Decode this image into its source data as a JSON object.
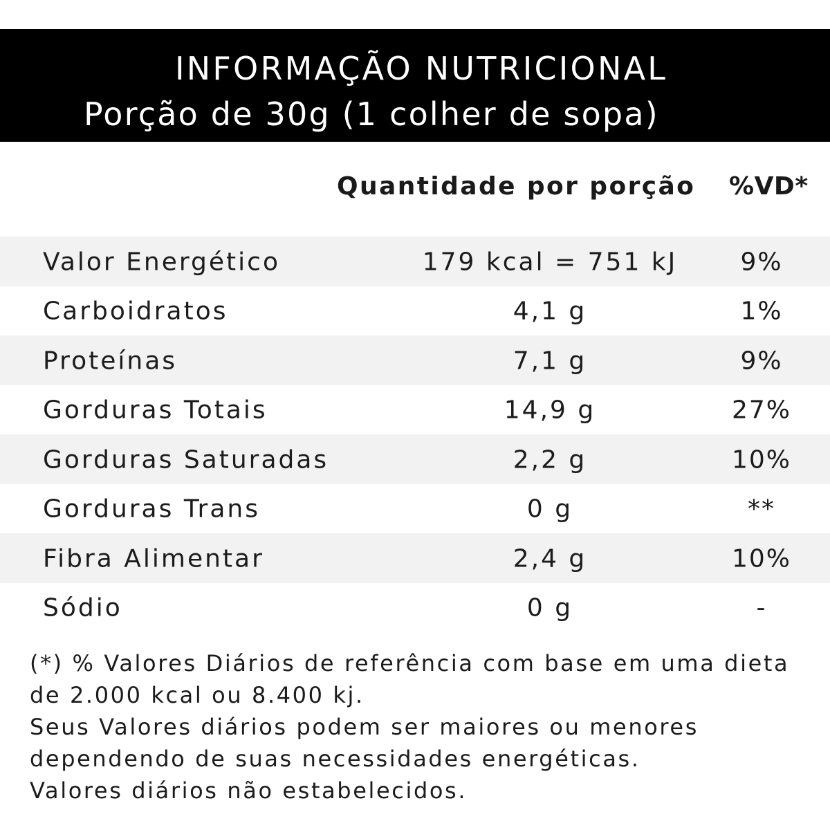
{
  "header": {
    "title": "INFORMAÇÃO NUTRICIONAL",
    "subtitle": "Porção de 30g (1 colher de sopa)"
  },
  "columns": {
    "quantity": "Quantidade por porção",
    "vd": "%VD*"
  },
  "rows": [
    {
      "name": "Valor Energético",
      "amount": "179 kcal = 751 kJ",
      "vd": "9%"
    },
    {
      "name": "Carboidratos",
      "amount": "4,1 g",
      "vd": "1%"
    },
    {
      "name": "Proteínas",
      "amount": "7,1 g",
      "vd": "9%"
    },
    {
      "name": "Gorduras Totais",
      "amount": "14,9 g",
      "vd": "27%"
    },
    {
      "name": "Gorduras Saturadas",
      "amount": "2,2 g",
      "vd": "10%"
    },
    {
      "name": "Gorduras Trans",
      "amount": "0 g",
      "vd": "**"
    },
    {
      "name": "Fibra Alimentar",
      "amount": "2,4 g",
      "vd": "10%"
    },
    {
      "name": "Sódio",
      "amount": "0 g",
      "vd": "-"
    }
  ],
  "notes": [
    "(*) % Valores Diários de referência com base em uma dieta",
    "de 2.000 kcal ou 8.400 kj.",
    "Seus Valores diários podem ser maiores ou menores",
    "dependendo de suas necessidades energéticas.",
    "Valores diários não estabelecidos."
  ],
  "colors": {
    "header_bg": "#000000",
    "header_text": "#ffffff",
    "row_shade": "#f2f2f2"
  }
}
